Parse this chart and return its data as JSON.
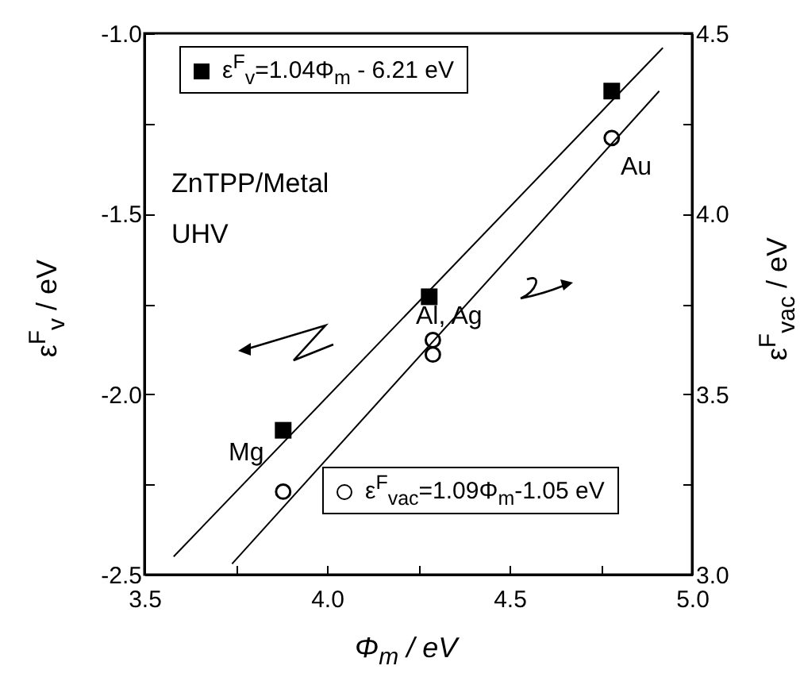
{
  "chart_data": {
    "type": "scatter",
    "xlabel": "Φ$_{m}$ / eV",
    "ylabel": "ε$^{F}$$_{v}$ / eV",
    "y2label": "ε$^{F}$$_{vac}$ / eV",
    "xlim": [
      3.5,
      5.0
    ],
    "ylim": [
      -2.5,
      -1.0
    ],
    "y2lim": [
      3.0,
      4.5
    ],
    "xticks": [
      {
        "value": 3.5,
        "label": "3.5"
      },
      {
        "value": 3.75,
        "label": null
      },
      {
        "value": 4,
        "label": "4.0"
      },
      {
        "value": 4.25,
        "label": null
      },
      {
        "value": 4.5,
        "label": "4.5"
      },
      {
        "value": 4.75,
        "label": null
      },
      {
        "value": 5,
        "label": "5.0"
      }
    ],
    "yticks": [
      {
        "value": -2.5,
        "label": "-2.5"
      },
      {
        "value": -2.25,
        "label": null
      },
      {
        "value": -2,
        "label": "-2.0"
      },
      {
        "value": -1.75,
        "label": null
      },
      {
        "value": -1.5,
        "label": "-1.5"
      },
      {
        "value": -1.25,
        "label": null
      },
      {
        "value": -1,
        "label": "-1.0"
      }
    ],
    "y2ticks": [
      {
        "value": 3,
        "label": "3.0"
      },
      {
        "value": 3.25,
        "label": null
      },
      {
        "value": 3.5,
        "label": "3.5"
      },
      {
        "value": 3.75,
        "label": null
      },
      {
        "value": 4,
        "label": "4.0"
      },
      {
        "value": 4.25,
        "label": null
      },
      {
        "value": 4.5,
        "label": "4.5"
      }
    ],
    "legend": "top",
    "series": [
      {
        "name": "ε$^{F}$$_{v}$=1.04Φ$_{m}$ - 6.21 eV",
        "type": "scatter",
        "marker": "square",
        "color": "#000000",
        "x": [
          3.88,
          4.28,
          4.78
        ],
        "values": [
          -2.1,
          -1.73,
          -1.16
        ]
      },
      {
        "type": "line",
        "color": "#000000",
        "x": [
          3.58,
          4.92
        ],
        "values": [
          -2.45,
          -1.04
        ]
      },
      {
        "name": "ε$^{F}$$_{vac}$=1.09Φ$_{m}$-1.05 eV",
        "type": "scatter",
        "marker": "circle",
        "axis": "y2",
        "color": "#000000",
        "x": [
          3.88,
          4.29,
          4.29,
          4.78
        ],
        "values": [
          3.23,
          3.65,
          3.61,
          4.21
        ]
      },
      {
        "type": "line",
        "axis": "y2",
        "color": "#000000",
        "x": [
          3.74,
          4.91
        ],
        "values": [
          3.03,
          4.34
        ]
      }
    ],
    "annotations": [
      "ZnTPP/Metal",
      "UHV",
      "Mg",
      "Al, Ag",
      "Au"
    ]
  }
}
